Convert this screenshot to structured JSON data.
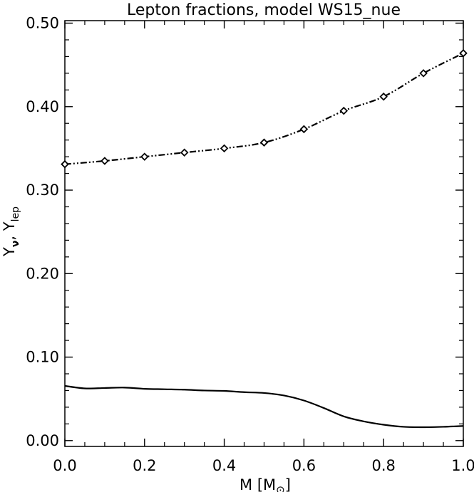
{
  "chart_data": {
    "type": "line",
    "title": "Lepton fractions, model WS15_nue",
    "xlabel": "M [M",
    "xlabel_symbol": "⊙",
    "xlabel_close": "]",
    "ylabel_parts": [
      "Y",
      "ν",
      ", Y",
      "lep"
    ],
    "xlim": [
      0.0,
      1.0
    ],
    "ylim": [
      -0.007,
      0.503
    ],
    "grid": false,
    "x_ticks": [
      "0.0",
      "0.2",
      "0.4",
      "0.6",
      "0.8",
      "1.0"
    ],
    "y_ticks": [
      "0.00",
      "0.10",
      "0.20",
      "0.30",
      "0.40",
      "0.50"
    ],
    "series": [
      {
        "line_style": "dash-dot-dot",
        "marker": "diamond",
        "x": [
          0.0,
          0.1,
          0.2,
          0.3,
          0.4,
          0.5,
          0.6,
          0.7,
          0.8,
          0.9,
          1.0
        ],
        "y": [
          0.331,
          0.335,
          0.34,
          0.345,
          0.35,
          0.357,
          0.373,
          0.395,
          0.412,
          0.44,
          0.464
        ]
      },
      {
        "line_style": "solid",
        "x": [
          0.0,
          0.05,
          0.1,
          0.15,
          0.2,
          0.25,
          0.3,
          0.35,
          0.4,
          0.45,
          0.5,
          0.55,
          0.6,
          0.65,
          0.7,
          0.75,
          0.8,
          0.85,
          0.9,
          0.95,
          1.0
        ],
        "y": [
          0.0655,
          0.0625,
          0.063,
          0.0635,
          0.062,
          0.0615,
          0.061,
          0.06,
          0.0595,
          0.058,
          0.057,
          0.054,
          0.048,
          0.039,
          0.029,
          0.023,
          0.019,
          0.0165,
          0.016,
          0.0165,
          0.0175
        ]
      }
    ]
  }
}
